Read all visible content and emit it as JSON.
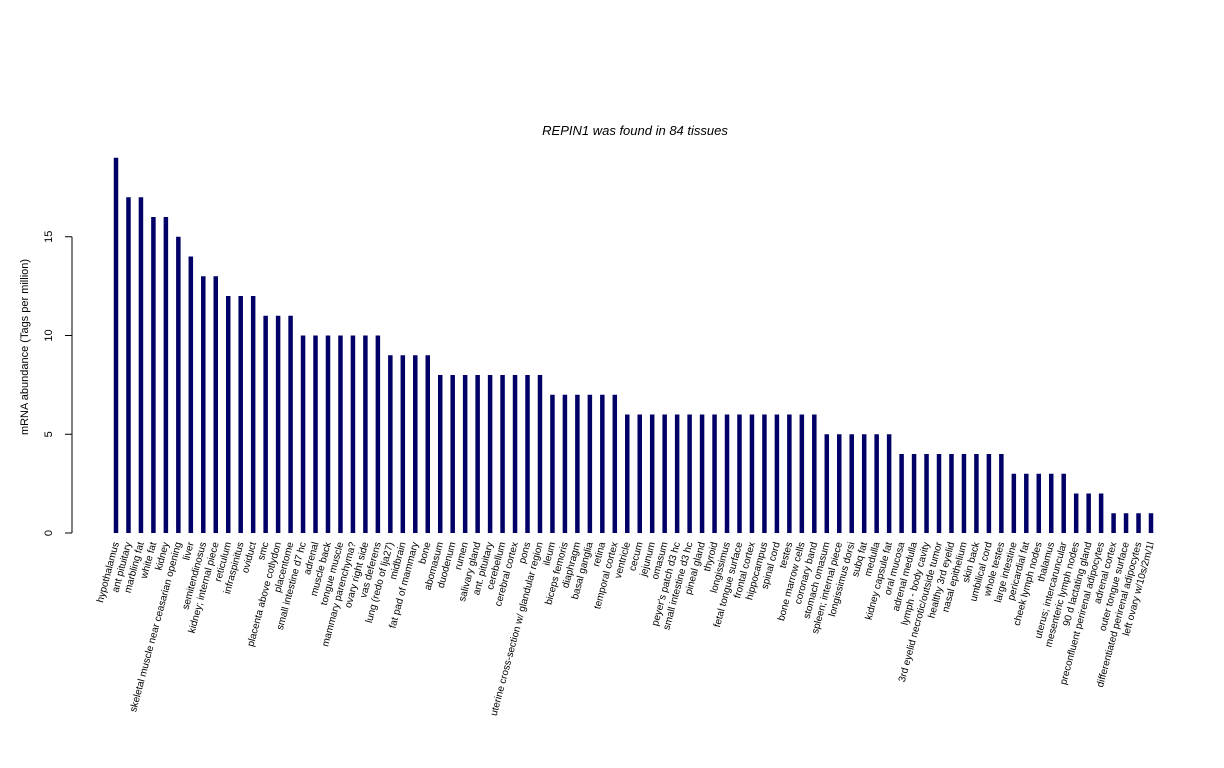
{
  "chart_data": {
    "type": "bar",
    "title": "REPIN1  was found in  84  tissues",
    "xlabel": "",
    "ylabel": "mRNA abundance (Tags per million)",
    "ylim": [
      0,
      19
    ],
    "yticks": [
      0,
      5,
      10,
      15
    ],
    "bar_color": "#000066",
    "grid": false,
    "categories": [
      "hypothalamus",
      "ant pituitary",
      "marbling fat",
      "white fat",
      "kidney",
      "skeletal muscle near ceasarian opening",
      "liver",
      "semitendinosus",
      "kidney; internal piece",
      "reticulum",
      "infraspinitus",
      "oviduct",
      "smc",
      "placenta above cotlydon",
      "placentome",
      "small intestine d7 hc",
      "adrenal",
      "muscle back",
      "tongue muscle",
      "mammary parenchyma?",
      "ovary right side",
      "vas deferens",
      "lung (redo of lja27)",
      "midbrain",
      "fat pad of mammary",
      "bone",
      "abomasum",
      "duodenum",
      "rumen",
      "salivary gland",
      "ant. pituitary",
      "cerebellum",
      "cerebral cortex",
      "pons",
      "uterine cross-section w/ glandular region",
      "ileum",
      "biceps femoris",
      "diaphragm",
      "basal ganglia",
      "retina",
      "temporal cortex",
      "ventricle",
      "cecum",
      "jejunum",
      "omasum",
      "peyer's patch d3 hc",
      "small intestine d3 hc",
      "pineal gland",
      "thyroid",
      "longissimus",
      "fetal tongue surface",
      "frontal cortex",
      "hippocampus",
      "spinal cord",
      "testes",
      "bone marrow cells",
      "coronary band",
      "stomach omasum",
      "spleen; internal piece",
      "longissimus dorsi",
      "subq fat",
      "medulla",
      "kidney capsule fat",
      "oral mucosa",
      "adrenal medulla",
      "lymph - body cavity",
      "3rd eyelid necrotic/outside tumor",
      "healthy 3rd eyelid",
      "nasal epithelium",
      "skin back",
      "umbilical cord",
      "whole testes",
      "large intestine",
      "pericardial fat",
      "cheek lymph nodes",
      "thalamus",
      "uterus; intercaruncular",
      "mesenteric lymph nodes",
      "90 d lactating gland",
      "preconfluent perirenal adipocytes",
      "adrenal cortex",
      "outer tongue surface",
      "differentiated perirenal adipocytes",
      "left ovary w/10s/2m/1l"
    ],
    "values": [
      19,
      17,
      17,
      16,
      16,
      15,
      14,
      13,
      13,
      12,
      12,
      12,
      11,
      11,
      11,
      10,
      10,
      10,
      10,
      10,
      10,
      10,
      9,
      9,
      9,
      9,
      8,
      8,
      8,
      8,
      8,
      8,
      8,
      8,
      8,
      7,
      7,
      7,
      7,
      7,
      7,
      6,
      6,
      6,
      6,
      6,
      6,
      6,
      6,
      6,
      6,
      6,
      6,
      6,
      6,
      6,
      6,
      5,
      5,
      5,
      5,
      5,
      5,
      4,
      4,
      4,
      4,
      4,
      4,
      4,
      4,
      4,
      3,
      3,
      3,
      3,
      3,
      2,
      2,
      2,
      1,
      1,
      1,
      1
    ]
  }
}
